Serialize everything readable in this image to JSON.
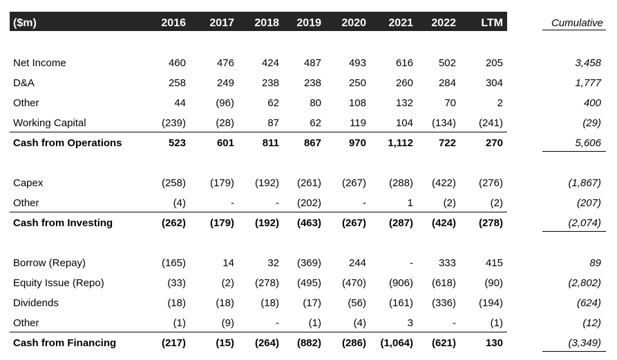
{
  "header": {
    "unit_label": "($m)",
    "years": [
      "2016",
      "2017",
      "2018",
      "2019",
      "2020",
      "2021",
      "2022",
      "LTM"
    ],
    "cumulative_label": "Cumulative"
  },
  "sections": [
    {
      "rows": [
        {
          "label": "Net Income",
          "values": [
            "460",
            "476",
            "424",
            "487",
            "493",
            "616",
            "502",
            "205"
          ],
          "cumulative": "3,458"
        },
        {
          "label": "D&A",
          "values": [
            "258",
            "249",
            "238",
            "238",
            "250",
            "260",
            "284",
            "304"
          ],
          "cumulative": "1,777"
        },
        {
          "label": "Other",
          "values": [
            "44",
            "(96)",
            "62",
            "80",
            "108",
            "132",
            "70",
            "2"
          ],
          "cumulative": "400"
        },
        {
          "label": "Working Capital",
          "values": [
            "(239)",
            "(28)",
            "87",
            "62",
            "119",
            "104",
            "(134)",
            "(241)"
          ],
          "cumulative": "(29)"
        }
      ],
      "total": {
        "label": "Cash from Operations",
        "values": [
          "523",
          "601",
          "811",
          "867",
          "970",
          "1,112",
          "722",
          "270"
        ],
        "cumulative": "5,606"
      }
    },
    {
      "rows": [
        {
          "label": "Capex",
          "values": [
            "(258)",
            "(179)",
            "(192)",
            "(261)",
            "(267)",
            "(288)",
            "(422)",
            "(276)"
          ],
          "cumulative": "(1,867)"
        },
        {
          "label": "Other",
          "values": [
            "(4)",
            "-",
            "-",
            "(202)",
            "-",
            "1",
            "(2)",
            "(2)"
          ],
          "cumulative": "(207)"
        }
      ],
      "total": {
        "label": "Cash from Investing",
        "values": [
          "(262)",
          "(179)",
          "(192)",
          "(463)",
          "(267)",
          "(287)",
          "(424)",
          "(278)"
        ],
        "cumulative": "(2,074)"
      }
    },
    {
      "rows": [
        {
          "label": "Borrow (Repay)",
          "values": [
            "(165)",
            "14",
            "32",
            "(369)",
            "244",
            "-",
            "333",
            "415"
          ],
          "cumulative": "89"
        },
        {
          "label": "Equity Issue (Repo)",
          "values": [
            "(33)",
            "(2)",
            "(278)",
            "(495)",
            "(470)",
            "(906)",
            "(618)",
            "(90)"
          ],
          "cumulative": "(2,802)"
        },
        {
          "label": "Dividends",
          "values": [
            "(18)",
            "(18)",
            "(18)",
            "(17)",
            "(56)",
            "(161)",
            "(336)",
            "(194)"
          ],
          "cumulative": "(624)"
        },
        {
          "label": "Other",
          "values": [
            "(1)",
            "(9)",
            "-",
            "(1)",
            "(4)",
            "3",
            "-",
            "(1)"
          ],
          "cumulative": "(12)"
        }
      ],
      "total": {
        "label": "Cash from Financing",
        "values": [
          "(217)",
          "(15)",
          "(264)",
          "(882)",
          "(286)",
          "(1,064)",
          "(621)",
          "130"
        ],
        "cumulative": "(3,349)"
      }
    }
  ]
}
